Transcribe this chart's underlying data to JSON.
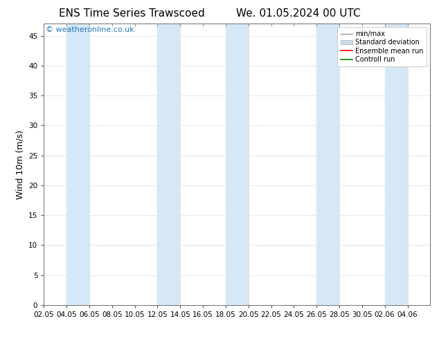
{
  "title_left": "ENS Time Series Trawscoed",
  "title_right": "We. 01.05.2024 00 UTC",
  "ylabel": "Wind 10m (m/s)",
  "watermark": "© weatheronline.co.uk",
  "xlim_start": 0,
  "xlim_end": 34,
  "ylim": [
    0,
    47
  ],
  "yticks": [
    0,
    5,
    10,
    15,
    20,
    25,
    30,
    35,
    40,
    45
  ],
  "xtick_labels": [
    "02.05",
    "04.05",
    "06.05",
    "08.05",
    "10.05",
    "12.05",
    "14.05",
    "16.05",
    "18.05",
    "20.05",
    "22.05",
    "24.05",
    "26.05",
    "28.05",
    "30.05",
    "02.06",
    "04.06"
  ],
  "xtick_positions": [
    0,
    2,
    4,
    6,
    8,
    10,
    12,
    14,
    16,
    18,
    20,
    22,
    24,
    26,
    28,
    30,
    32
  ],
  "shaded_bands": [
    {
      "x_start": 2,
      "x_end": 4
    },
    {
      "x_start": 10,
      "x_end": 12
    },
    {
      "x_start": 16,
      "x_end": 18
    },
    {
      "x_start": 24,
      "x_end": 26
    },
    {
      "x_start": 30,
      "x_end": 32
    }
  ],
  "band_color": "#d6e8f5",
  "legend_items": [
    {
      "label": "min/max",
      "color": "#aaaaaa",
      "type": "minmax"
    },
    {
      "label": "Standard deviation",
      "color": "#bbccdd",
      "type": "stddev"
    },
    {
      "label": "Ensemble mean run",
      "color": "red",
      "type": "line"
    },
    {
      "label": "Controll run",
      "color": "green",
      "type": "line"
    }
  ],
  "background_color": "#ffffff",
  "grid_color": "#dddddd",
  "title_fontsize": 11,
  "label_fontsize": 9,
  "tick_fontsize": 7.5,
  "watermark_color": "#2277bb",
  "watermark_fontsize": 8
}
